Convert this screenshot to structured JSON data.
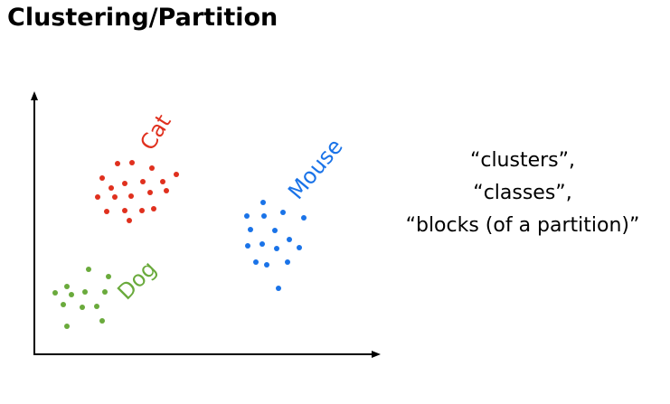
{
  "title": "Clustering/Partition",
  "clusters": [
    {
      "label": "Cat",
      "color": "#e0301e",
      "points": [
        [
          113,
          197
        ],
        [
          130,
          181
        ],
        [
          146,
          180
        ],
        [
          168,
          186
        ],
        [
          195,
          193
        ],
        [
          123,
          208
        ],
        [
          138,
          203
        ],
        [
          158,
          201
        ],
        [
          180,
          201
        ],
        [
          108,
          218
        ],
        [
          127,
          218
        ],
        [
          145,
          217
        ],
        [
          166,
          213
        ],
        [
          184,
          211
        ],
        [
          118,
          234
        ],
        [
          138,
          233
        ],
        [
          157,
          233
        ],
        [
          170,
          231
        ],
        [
          143,
          244
        ]
      ]
    },
    {
      "label": "Dog",
      "color": "#6aaa3c",
      "points": [
        [
          98,
          298
        ],
        [
          120,
          306
        ],
        [
          74,
          317
        ],
        [
          61,
          324
        ],
        [
          79,
          326
        ],
        [
          94,
          323
        ],
        [
          116,
          323
        ],
        [
          70,
          337
        ],
        [
          91,
          340
        ],
        [
          107,
          339
        ],
        [
          113,
          355
        ],
        [
          74,
          361
        ]
      ]
    },
    {
      "label": "Mouse",
      "color": "#1a73e8",
      "points": [
        [
          291,
          224
        ],
        [
          273,
          239
        ],
        [
          292,
          239
        ],
        [
          313,
          235
        ],
        [
          336,
          241
        ],
        [
          277,
          254
        ],
        [
          304,
          255
        ],
        [
          320,
          265
        ],
        [
          274,
          272
        ],
        [
          290,
          270
        ],
        [
          306,
          275
        ],
        [
          331,
          274
        ],
        [
          283,
          290
        ],
        [
          295,
          293
        ],
        [
          318,
          290
        ],
        [
          308,
          319
        ]
      ]
    }
  ],
  "aside_lines": [
    "“clusters”,",
    "“classes”,",
    "“blocks (of a partition)”"
  ]
}
